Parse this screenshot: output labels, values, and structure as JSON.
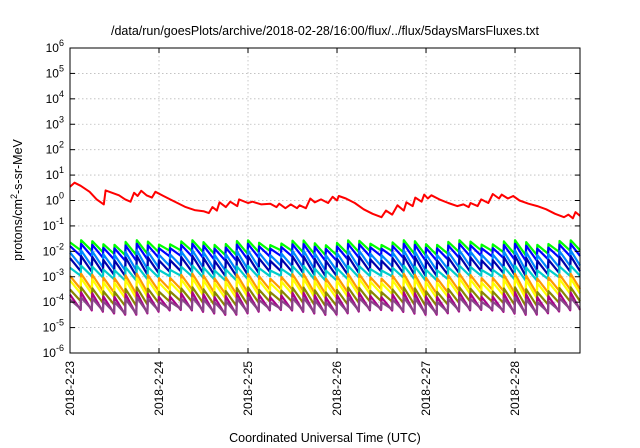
{
  "chart_data": {
    "type": "line",
    "title": "/data/run/goesPlots/archive/2018-02-28/16:00/flux/../flux/5daysMarsFluxes.txt",
    "xlabel": "Coordinated Universal Time (UTC)",
    "ylabel": {
      "pre": "protons/cm",
      "sup": "2",
      "post": "-s-sr-MeV"
    },
    "yscale": "log",
    "ylim_exponent": [
      -6,
      6
    ],
    "y_tick_base": "10",
    "y_tick_exponents": [
      "-6",
      "-5",
      "-4",
      "-3",
      "-2",
      "-1",
      "0",
      "1",
      "2",
      "3",
      "4",
      "5",
      "6"
    ],
    "x_tick_labels": [
      "2018-2-23",
      "2018-2-24",
      "2018-2-25",
      "2018-2-26",
      "2018-2-27",
      "2018-2-28"
    ],
    "xlim_days": [
      0,
      5.73
    ],
    "grid": true,
    "red_series": {
      "color": "#ff0000",
      "points": [
        [
          0.0,
          3.5
        ],
        [
          0.05,
          5.0
        ],
        [
          0.12,
          3.8
        ],
        [
          0.22,
          2.2
        ],
        [
          0.3,
          1.1
        ],
        [
          0.38,
          0.7
        ],
        [
          0.4,
          2.5
        ],
        [
          0.55,
          1.6
        ],
        [
          0.62,
          1.1
        ],
        [
          0.68,
          0.9
        ],
        [
          0.72,
          2.0
        ],
        [
          0.76,
          1.5
        ],
        [
          0.8,
          2.4
        ],
        [
          0.86,
          1.6
        ],
        [
          0.92,
          1.3
        ],
        [
          0.96,
          2.2
        ],
        [
          1.05,
          1.5
        ],
        [
          1.15,
          1.0
        ],
        [
          1.3,
          0.55
        ],
        [
          1.4,
          0.42
        ],
        [
          1.5,
          0.38
        ],
        [
          1.56,
          0.32
        ],
        [
          1.6,
          0.55
        ],
        [
          1.65,
          0.4
        ],
        [
          1.68,
          0.85
        ],
        [
          1.75,
          0.55
        ],
        [
          1.8,
          0.9
        ],
        [
          1.88,
          0.6
        ],
        [
          1.9,
          1.1
        ],
        [
          2.0,
          0.8
        ],
        [
          2.05,
          0.9
        ],
        [
          2.15,
          0.7
        ],
        [
          2.25,
          0.75
        ],
        [
          2.32,
          0.55
        ],
        [
          2.35,
          0.75
        ],
        [
          2.42,
          0.5
        ],
        [
          2.48,
          0.7
        ],
        [
          2.55,
          0.5
        ],
        [
          2.58,
          0.65
        ],
        [
          2.65,
          0.5
        ],
        [
          2.7,
          1.2
        ],
        [
          2.75,
          0.85
        ],
        [
          2.82,
          1.1
        ],
        [
          2.9,
          0.8
        ],
        [
          2.95,
          1.4
        ],
        [
          3.0,
          1.0
        ],
        [
          3.02,
          1.5
        ],
        [
          3.1,
          1.2
        ],
        [
          3.2,
          0.8
        ],
        [
          3.3,
          0.45
        ],
        [
          3.4,
          0.3
        ],
        [
          3.5,
          0.22
        ],
        [
          3.55,
          0.4
        ],
        [
          3.62,
          0.28
        ],
        [
          3.68,
          0.65
        ],
        [
          3.75,
          0.4
        ],
        [
          3.78,
          0.85
        ],
        [
          3.85,
          0.6
        ],
        [
          3.88,
          1.3
        ],
        [
          3.95,
          0.9
        ],
        [
          3.98,
          1.7
        ],
        [
          4.02,
          1.2
        ],
        [
          4.06,
          1.6
        ],
        [
          4.15,
          1.1
        ],
        [
          4.25,
          0.8
        ],
        [
          4.35,
          0.6
        ],
        [
          4.42,
          0.7
        ],
        [
          4.48,
          0.55
        ],
        [
          4.5,
          0.8
        ],
        [
          4.58,
          0.6
        ],
        [
          4.62,
          1.1
        ],
        [
          4.7,
          0.8
        ],
        [
          4.75,
          1.8
        ],
        [
          4.82,
          1.2
        ],
        [
          4.85,
          1.7
        ],
        [
          4.92,
          1.2
        ],
        [
          4.98,
          1.5
        ],
        [
          5.05,
          1.0
        ],
        [
          5.15,
          0.75
        ],
        [
          5.25,
          0.6
        ],
        [
          5.35,
          0.45
        ],
        [
          5.45,
          0.3
        ],
        [
          5.55,
          0.22
        ],
        [
          5.6,
          0.28
        ],
        [
          5.65,
          0.2
        ],
        [
          5.68,
          0.35
        ],
        [
          5.73,
          0.25
        ]
      ]
    },
    "sawtooth_bands": [
      {
        "color": "#00ff00",
        "peak": 0.025,
        "trough": 0.01
      },
      {
        "color": "#0000ff",
        "peak": 0.018,
        "trough": 0.006
      },
      {
        "color": "#0088ff",
        "peak": 0.01,
        "trough": 0.0025
      },
      {
        "color": "#0000aa",
        "peak": 0.006,
        "trough": 0.0015
      },
      {
        "color": "#00cccc",
        "peak": 0.0025,
        "trough": 0.001
      },
      {
        "color": "#ff9900",
        "peak": 0.0012,
        "trough": 0.0003
      },
      {
        "color": "#ffff00",
        "peak": 0.0008,
        "trough": 0.0002
      },
      {
        "color": "#888800",
        "peak": 0.00035,
        "trough": 0.0001
      },
      {
        "color": "#aa0088",
        "peak": 0.00022,
        "trough": 4.5e-05
      },
      {
        "color": "#884488",
        "peak": 0.00014,
        "trough": 5e-05
      }
    ],
    "sawtooth_period_days": 0.125
  }
}
